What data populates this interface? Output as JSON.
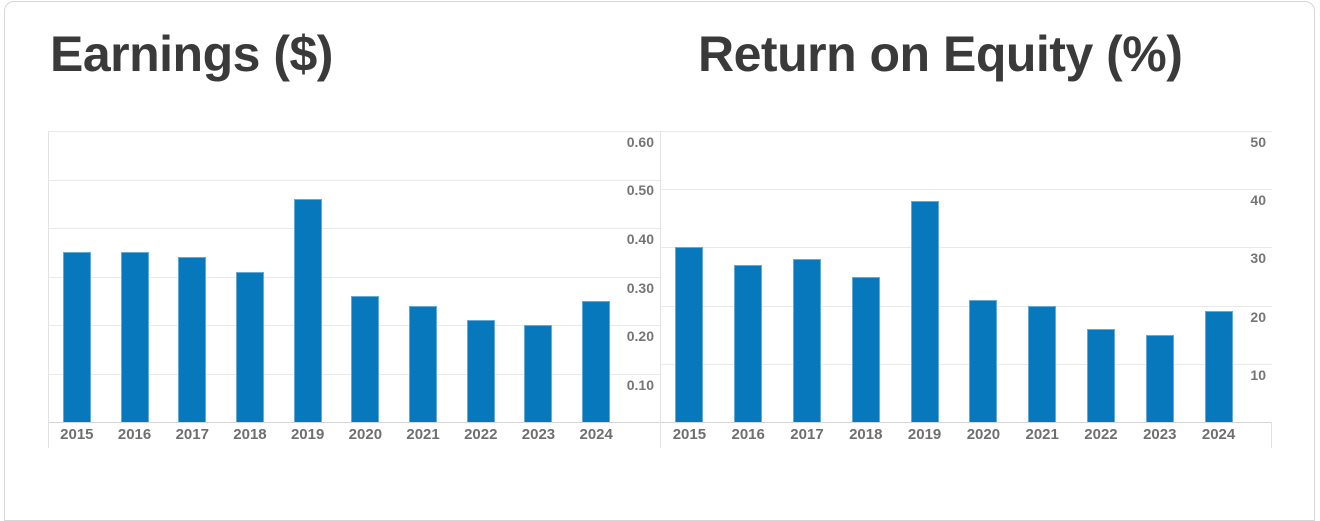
{
  "colors": {
    "bar_fill": "#0878BC",
    "bar_edge": "#6EAFD7",
    "title_text": "#3A3A3A",
    "axis_label_text": "#757575",
    "gridline": "#E9E9E9",
    "baseline": "#D5D5D5",
    "card_border": "#D6D6D6"
  },
  "chart_data": [
    {
      "type": "bar",
      "title": "Earnings ($)",
      "categories": [
        "2015",
        "2016",
        "2017",
        "2018",
        "2019",
        "2020",
        "2021",
        "2022",
        "2023",
        "2024"
      ],
      "values": [
        0.35,
        0.35,
        0.34,
        0.31,
        0.46,
        0.26,
        0.24,
        0.21,
        0.2,
        0.25
      ],
      "xlabel": "",
      "ylabel": "",
      "ylim": [
        0,
        0.6
      ],
      "y_ticks": [
        {
          "v": 0.6,
          "label": "0.60"
        },
        {
          "v": 0.5,
          "label": "0.50"
        },
        {
          "v": 0.4,
          "label": "0.40"
        },
        {
          "v": 0.3,
          "label": "0.30"
        },
        {
          "v": 0.2,
          "label": "0.20"
        },
        {
          "v": 0.1,
          "label": "0.10"
        }
      ],
      "axis_side": "right",
      "grid": "horizontal",
      "legend": "none",
      "bar_color": "#0878BC"
    },
    {
      "type": "bar",
      "title": "Return on Equity (%)",
      "categories": [
        "2015",
        "2016",
        "2017",
        "2018",
        "2019",
        "2020",
        "2021",
        "2022",
        "2023",
        "2024"
      ],
      "values": [
        30,
        27,
        28,
        25,
        38,
        21,
        20,
        16,
        15,
        19
      ],
      "xlabel": "",
      "ylabel": "",
      "ylim": [
        0,
        50
      ],
      "y_ticks": [
        {
          "v": 50,
          "label": "50"
        },
        {
          "v": 40,
          "label": "40"
        },
        {
          "v": 30,
          "label": "30"
        },
        {
          "v": 20,
          "label": "20"
        },
        {
          "v": 10,
          "label": "10"
        }
      ],
      "axis_side": "right",
      "grid": "horizontal",
      "legend": "none",
      "bar_color": "#0878BC"
    }
  ]
}
